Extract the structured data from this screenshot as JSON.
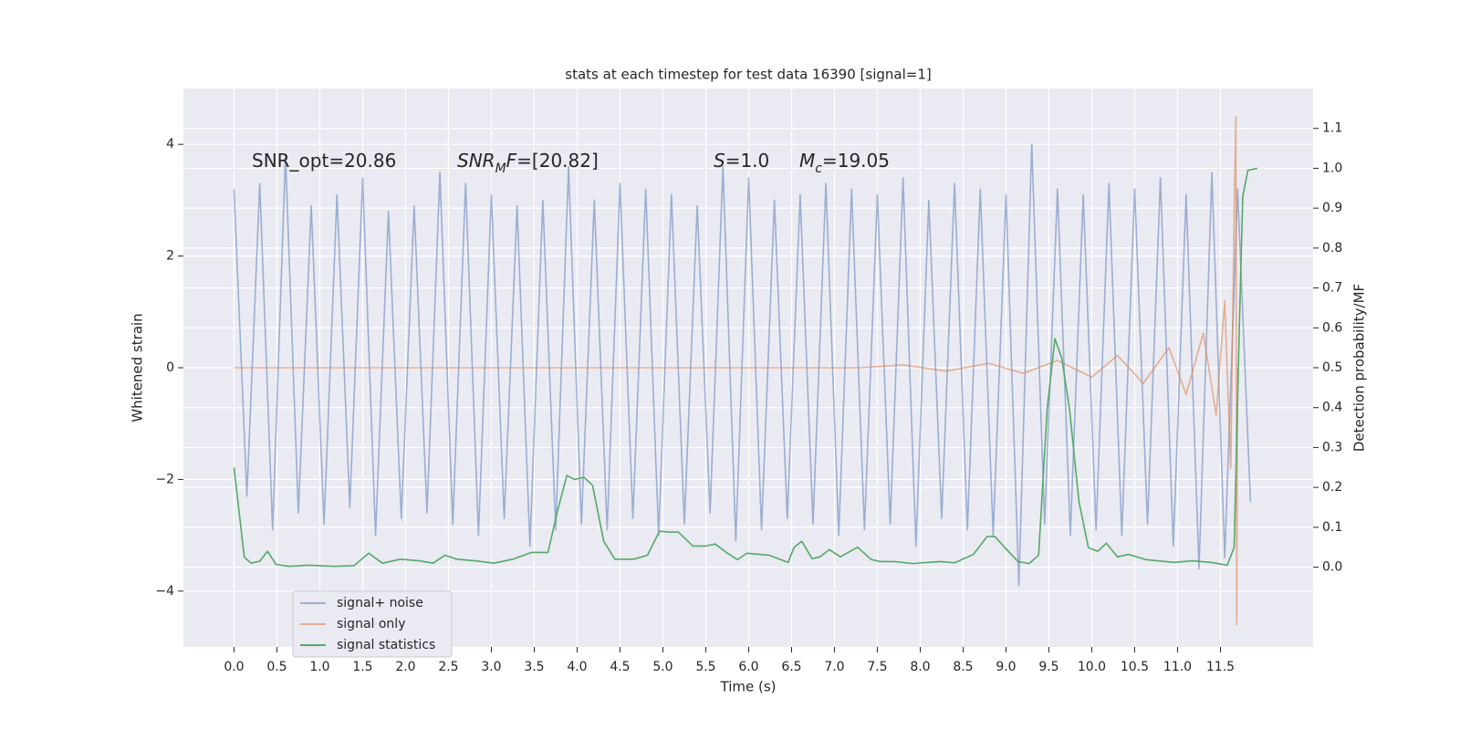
{
  "chart_data": {
    "type": "line",
    "title": "stats at each timestep for test data 16390 [signal=1]",
    "xlabel": "Time (s)",
    "ylabel": "Whitened strain",
    "y2label": "Detection probability/MF",
    "grid": true,
    "legend": "lower left",
    "background": "#eaeaf2",
    "xlim": [
      -0.59,
      12.58
    ],
    "ylim": [
      -5,
      5
    ],
    "y2lim": [
      -0.2,
      1.2
    ],
    "xticks": [
      {
        "value": 0,
        "label": "0.0"
      },
      0.5,
      {
        "value": 1,
        "label": "1.0"
      },
      1.5,
      {
        "value": 2,
        "label": "2.0"
      },
      2.5,
      {
        "value": 3,
        "label": "3.0"
      },
      3.5,
      {
        "value": 4,
        "label": "4.0"
      },
      4.5,
      {
        "value": 5,
        "label": "5.0"
      },
      5.5,
      {
        "value": 6,
        "label": "6.0"
      },
      6.5,
      {
        "value": 7,
        "label": "7.0"
      },
      7.5,
      {
        "value": 8,
        "label": "8.0"
      },
      8.5,
      {
        "value": 9,
        "label": "9.0"
      },
      9.5,
      {
        "value": 10,
        "label": "10.0"
      },
      10.5,
      {
        "value": 11,
        "label": "11.0"
      },
      11.5
    ],
    "yticks": [
      {
        "value": -4,
        "label": "−4"
      },
      {
        "value": -2,
        "label": "−2"
      },
      0,
      2,
      4
    ],
    "y2ticks": [
      {
        "value": 0,
        "label": "0.0"
      },
      0.1,
      0.2,
      0.3,
      0.4,
      0.5,
      0.6,
      0.7,
      0.8,
      0.9,
      {
        "value": 1,
        "label": "1.0"
      },
      1.1
    ],
    "annotations": [
      [
        {
          "text": "SNR_opt=20.86"
        }
      ],
      [
        {
          "text": "SNR",
          "italic": true
        },
        {
          "text": "M",
          "italic": true,
          "sub": true
        },
        {
          "text": "F",
          "italic": true
        },
        {
          "text": "=[20.82]"
        }
      ],
      [
        {
          "text": "S",
          "italic": true
        },
        {
          "text": "=1.0"
        }
      ],
      [
        {
          "text": "M",
          "italic": true
        },
        {
          "text": "c",
          "italic": true,
          "sub": true
        },
        {
          "text": "=19.05"
        }
      ]
    ],
    "series": [
      {
        "name": "signal+ noise",
        "color": "#4c72b0",
        "opacity": 0.5,
        "x": [
          0,
          0.15,
          0.3,
          0.45,
          0.6,
          0.75,
          0.9,
          1.05,
          1.2,
          1.35,
          1.5,
          1.65,
          1.8,
          1.95,
          2.1,
          2.25,
          2.4,
          2.55,
          2.7,
          2.85,
          3,
          3.15,
          3.3,
          3.45,
          3.6,
          3.75,
          3.9,
          4.05,
          4.2,
          4.35,
          4.5,
          4.65,
          4.8,
          4.95,
          5.1,
          5.25,
          5.4,
          5.55,
          5.7,
          5.85,
          6,
          6.15,
          6.3,
          6.45,
          6.6,
          6.75,
          6.9,
          7.05,
          7.2,
          7.35,
          7.5,
          7.65,
          7.8,
          7.95,
          8.1,
          8.25,
          8.4,
          8.55,
          8.7,
          8.85,
          9,
          9.15,
          9.3,
          9.45,
          9.6,
          9.75,
          9.9,
          10.05,
          10.2,
          10.35,
          10.5,
          10.65,
          10.8,
          10.95,
          11.1,
          11.25,
          11.4,
          11.55,
          11.7,
          11.85
        ],
        "values": [
          3.2,
          -2.3,
          3.3,
          -2.9,
          3.8,
          -2.6,
          2.9,
          -2.8,
          3.1,
          -2.5,
          3.4,
          -3.0,
          2.8,
          -2.7,
          2.9,
          -2.6,
          3.5,
          -2.8,
          3.3,
          -3.0,
          3.1,
          -2.7,
          2.9,
          -3.2,
          3.0,
          -2.9,
          3.6,
          -2.8,
          3.0,
          -2.9,
          3.3,
          -2.7,
          3.2,
          -3.0,
          3.1,
          -2.8,
          2.9,
          -2.6,
          3.6,
          -3.1,
          3.4,
          -2.9,
          3.0,
          -2.7,
          3.1,
          -2.8,
          3.3,
          -3.0,
          3.2,
          -2.9,
          3.1,
          -2.8,
          3.4,
          -3.2,
          3.0,
          -2.7,
          3.3,
          -2.9,
          3.2,
          -3.0,
          3.1,
          -3.9,
          4.0,
          -2.8,
          3.2,
          -3.0,
          3.1,
          -2.9,
          3.3,
          -3.0,
          3.2,
          -2.8,
          3.4,
          -3.2,
          3.1,
          -3.6,
          3.5,
          -3.4,
          3.2,
          -2.4
        ]
      },
      {
        "name": "signal only",
        "color": "#dd8452",
        "opacity": 0.6,
        "x": [
          0,
          7.3,
          7.8,
          8.3,
          8.8,
          9.2,
          9.6,
          10.0,
          10.3,
          10.6,
          10.9,
          11.1,
          11.3,
          11.45,
          11.55,
          11.62,
          11.66,
          11.68,
          11.69,
          11.7
        ],
        "values": [
          0,
          0,
          0.05,
          -0.06,
          0.08,
          -0.1,
          0.13,
          -0.17,
          0.22,
          -0.28,
          0.36,
          -0.48,
          0.62,
          -0.85,
          1.2,
          -1.8,
          2.8,
          4.5,
          -4.6,
          0
        ]
      },
      {
        "name": "signal statistics",
        "color": "#55a868",
        "opacity": 1,
        "axis": "y2",
        "x": [
          0,
          0.12,
          0.2,
          0.3,
          0.39,
          0.49,
          0.64,
          0.86,
          1.18,
          1.4,
          1.57,
          1.73,
          1.94,
          2.16,
          2.32,
          2.46,
          2.6,
          2.81,
          3.03,
          3.25,
          3.47,
          3.66,
          3.77,
          3.88,
          3.97,
          4.08,
          4.18,
          4.31,
          4.44,
          4.66,
          4.82,
          4.96,
          5.07,
          5.18,
          5.35,
          5.5,
          5.61,
          5.74,
          5.87,
          5.98,
          6.24,
          6.46,
          6.53,
          6.62,
          6.74,
          6.83,
          6.94,
          7.07,
          7.27,
          7.43,
          7.54,
          7.7,
          7.92,
          8.02,
          8.24,
          8.4,
          8.62,
          8.78,
          8.87,
          9.0,
          9.14,
          9.27,
          9.38,
          9.48,
          9.57,
          9.65,
          9.74,
          9.85,
          9.96,
          10.07,
          10.17,
          10.3,
          10.43,
          10.63,
          10.96,
          11.17,
          11.39,
          11.58,
          11.66,
          11.72,
          11.76,
          11.82,
          11.93
        ],
        "values": [
          0.25,
          0.025,
          0.01,
          0.015,
          0.04,
          0.007,
          0.002,
          0.005,
          0.002,
          0.004,
          0.035,
          0.01,
          0.02,
          0.016,
          0.01,
          0.03,
          0.02,
          0.016,
          0.01,
          0.02,
          0.037,
          0.037,
          0.14,
          0.23,
          0.22,
          0.225,
          0.205,
          0.065,
          0.02,
          0.02,
          0.03,
          0.09,
          0.088,
          0.088,
          0.053,
          0.053,
          0.058,
          0.037,
          0.019,
          0.035,
          0.03,
          0.012,
          0.05,
          0.065,
          0.021,
          0.026,
          0.044,
          0.026,
          0.05,
          0.019,
          0.014,
          0.014,
          0.009,
          0.011,
          0.014,
          0.011,
          0.032,
          0.077,
          0.077,
          0.046,
          0.014,
          0.009,
          0.03,
          0.397,
          0.573,
          0.524,
          0.397,
          0.165,
          0.049,
          0.04,
          0.06,
          0.026,
          0.032,
          0.019,
          0.012,
          0.016,
          0.012,
          0.005,
          0.05,
          0.6,
          0.93,
          0.995,
          1.0
        ]
      }
    ]
  }
}
